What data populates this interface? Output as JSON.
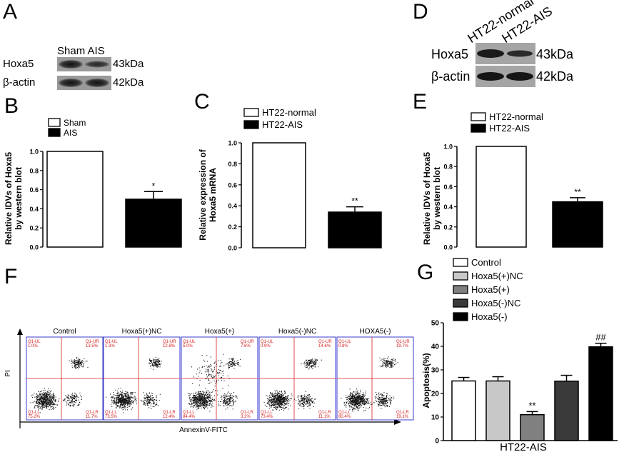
{
  "panels": {
    "A": "A",
    "B": "B",
    "C": "C",
    "D": "D",
    "E": "E",
    "F": "F",
    "G": "G"
  },
  "blot_a": {
    "lane_labels": "Sham AIS",
    "row1_label": "Hoxa5",
    "row1_size": "43kDa",
    "row2_label": "β-actin",
    "row2_size": "42kDa"
  },
  "blot_d": {
    "lane1": "HT22-normal",
    "lane2": "HT22-AIS",
    "row1_label": "Hoxa5",
    "row1_size": "43kDa",
    "row2_label": "β-actin",
    "row2_size": "42kDa"
  },
  "flow": {
    "y_label": "PI",
    "x_label": "AnnexinV-FITC",
    "plots": [
      {
        "title": "Control",
        "ul": "Q1-UL\n1.0%",
        "ur": "Q1-UR\n13.5%",
        "ll": "Q1-LL\n75.2%",
        "lr": "Q1-LR\n11.7%",
        "ul_txt": "1.0%",
        "ur_txt": "13.5%",
        "ll_txt": "75.2%",
        "lr_txt": "11.7%"
      },
      {
        "title": "Hoxa5(+)NC",
        "ul_txt": "1.3%",
        "ur_txt": "12.8%",
        "ll_txt": "73.5%",
        "lr_txt": "12.4%"
      },
      {
        "title": "Hoxa5(+)",
        "ul_txt": "5.0%",
        "ur_txt": "7.6%",
        "ll_txt": "84.4%",
        "lr_txt": "3.2%"
      },
      {
        "title": "Hoxa5(-)NC",
        "ul_txt": "0.9%",
        "ur_txt": "14.6%",
        "ll_txt": "73.4%",
        "lr_txt": "11.1%"
      },
      {
        "title": "HOXA5(-)",
        "ul_txt": "0.8%",
        "ur_txt": "19.7%",
        "ll_txt": "60.4%",
        "lr_txt": "19.1%"
      }
    ]
  },
  "chart_data": [
    {
      "id": "B",
      "type": "bar",
      "categories": [
        "Sham",
        "AIS"
      ],
      "values": [
        1.0,
        0.5
      ],
      "errors": [
        0,
        0.08
      ],
      "significance": [
        "",
        "*"
      ],
      "colors": [
        "#ffffff",
        "#000000"
      ],
      "legend": [
        "Sham",
        "AIS"
      ],
      "ylabel": "Relative IDVs of Hoxa5 by western blot",
      "ylim": [
        0,
        1.0
      ],
      "yticks": [
        "0.0",
        "0.2",
        "0.4",
        "0.6",
        "0.8",
        "1.0"
      ]
    },
    {
      "id": "C",
      "type": "bar",
      "categories": [
        "HT22-normal",
        "HT22-AIS"
      ],
      "values": [
        1.0,
        0.34
      ],
      "errors": [
        0,
        0.05
      ],
      "significance": [
        "",
        "**"
      ],
      "colors": [
        "#ffffff",
        "#000000"
      ],
      "legend": [
        "HT22-normal",
        "HT22-AIS"
      ],
      "ylabel": "Relative expression of Hoxa5 mRNA",
      "ylim": [
        0,
        1.0
      ],
      "yticks": [
        "0.0",
        "0.2",
        "0.4",
        "0.6",
        "0.8",
        "1.0"
      ]
    },
    {
      "id": "E",
      "type": "bar",
      "categories": [
        "HT22-normal",
        "HT22-AIS"
      ],
      "values": [
        1.0,
        0.45
      ],
      "errors": [
        0,
        0.04
      ],
      "significance": [
        "",
        "**"
      ],
      "colors": [
        "#ffffff",
        "#000000"
      ],
      "legend": [
        "HT22-normal",
        "HT22-AIS"
      ],
      "ylabel": "Relative IDVs of Hoxa5 by western blot",
      "ylim": [
        0,
        1.0
      ],
      "yticks": [
        "0.0",
        "0.2",
        "0.4",
        "0.6",
        "0.8",
        "1.0"
      ]
    },
    {
      "id": "G",
      "type": "bar",
      "categories": [
        "Control",
        "Hoxa5(+)NC",
        "Hoxa5(+)",
        "Hoxa5(-)NC",
        "Hoxa5(-)"
      ],
      "values": [
        25.3,
        25.3,
        11.0,
        25.2,
        39.8
      ],
      "errors": [
        1.5,
        1.8,
        1.3,
        2.5,
        1.5
      ],
      "significance": [
        "",
        "",
        "**",
        "",
        "##"
      ],
      "colors": [
        "#ffffff",
        "#c8c8c8",
        "#808080",
        "#3a3a3a",
        "#000000"
      ],
      "legend": [
        "Control",
        "Hoxa5(+)NC",
        "Hoxa5(+)",
        "Hoxa5(-)NC",
        "Hoxa5(-)"
      ],
      "ylabel": "Apoptosis(%)",
      "xlabel": "HT22-AIS",
      "ylim": [
        0,
        50
      ],
      "yticks": [
        "0",
        "10",
        "20",
        "30",
        "40",
        "50"
      ]
    }
  ]
}
